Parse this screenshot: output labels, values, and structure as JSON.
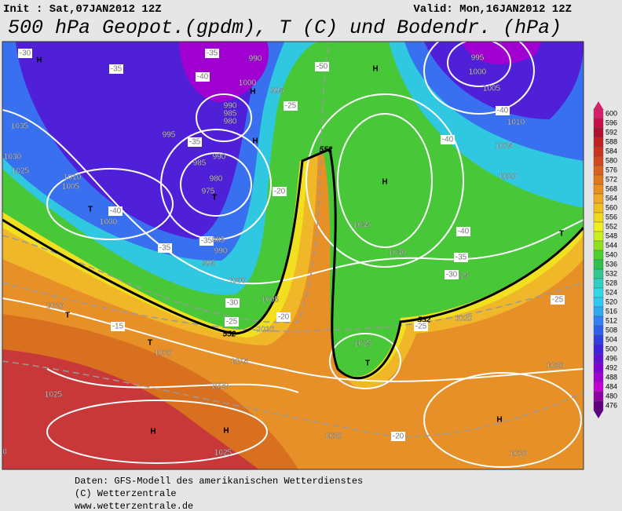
{
  "header": {
    "init": "Init : Sat,07JAN2012 12Z",
    "valid": "Valid: Mon,16JAN2012 12Z",
    "title": "500 hPa Geopot.(gpdm), T (C) und Bodendr. (hPa)"
  },
  "legend": [
    {
      "value": 600,
      "color": "#d8206a"
    },
    {
      "value": 596,
      "color": "#c81048"
    },
    {
      "value": 592,
      "color": "#b01030"
    },
    {
      "value": 588,
      "color": "#c02222"
    },
    {
      "value": 584,
      "color": "#c83420"
    },
    {
      "value": 580,
      "color": "#d04820"
    },
    {
      "value": 576,
      "color": "#d86020"
    },
    {
      "value": 572,
      "color": "#e07820"
    },
    {
      "value": 568,
      "color": "#e89020"
    },
    {
      "value": 564,
      "color": "#f0a828"
    },
    {
      "value": 560,
      "color": "#f0c020"
    },
    {
      "value": 556,
      "color": "#f0d820"
    },
    {
      "value": 552,
      "color": "#f0f020"
    },
    {
      "value": 548,
      "color": "#c8f020"
    },
    {
      "value": 544,
      "color": "#90e020"
    },
    {
      "value": 540,
      "color": "#50d030"
    },
    {
      "value": 536,
      "color": "#30c050"
    },
    {
      "value": 532,
      "color": "#30c890"
    },
    {
      "value": 528,
      "color": "#30d0c0"
    },
    {
      "value": 524,
      "color": "#30d8e8"
    },
    {
      "value": 520,
      "color": "#30c8f0"
    },
    {
      "value": 516,
      "color": "#30a8f0"
    },
    {
      "value": 512,
      "color": "#3080f0"
    },
    {
      "value": 508,
      "color": "#3060e8"
    },
    {
      "value": 504,
      "color": "#3040e0"
    },
    {
      "value": 500,
      "color": "#4020d8"
    },
    {
      "value": 496,
      "color": "#6010d0"
    },
    {
      "value": 492,
      "color": "#8000d0"
    },
    {
      "value": 488,
      "color": "#a000d0"
    },
    {
      "value": 484,
      "color": "#c000d0"
    },
    {
      "value": 480,
      "color": "#9000a0"
    },
    {
      "value": 476,
      "color": "#600080"
    }
  ],
  "map_labels": [
    "H",
    "-30",
    "-35",
    "-35",
    "990",
    "-40",
    "1000",
    "H",
    "995",
    "-50",
    "H",
    "995",
    "1000",
    "1005",
    "-40",
    "1010",
    "-40",
    "1015",
    "1020",
    "1035",
    "995",
    "-35",
    "990",
    "985",
    "980",
    "H",
    "-25",
    "1030",
    "1025",
    "990",
    "985",
    "980",
    "975",
    "T",
    "-20",
    "552",
    "H",
    "1010",
    "1005",
    "T",
    "-40",
    "1000",
    "-35",
    "-35",
    "985",
    "990",
    "995",
    "1035",
    "-40",
    "1030",
    "-35",
    "T",
    "1025",
    "-30",
    "1000",
    "-25",
    "1010",
    "T",
    "-30",
    "1005",
    "-20",
    "-25",
    "-15",
    "1010",
    "552",
    "1020",
    "552",
    "-25",
    "T",
    "1010",
    "1015",
    "1015",
    "T",
    "1020",
    "1020",
    "1025",
    "H",
    "H",
    "H",
    "1020",
    "-20",
    "1025",
    "1020",
    "0"
  ],
  "footer": [
    "Daten: GFS-Modell des amerikanischen Wetterdienstes",
    "(C) Wetterzentrale",
    "www.wetterzentrale.de"
  ]
}
